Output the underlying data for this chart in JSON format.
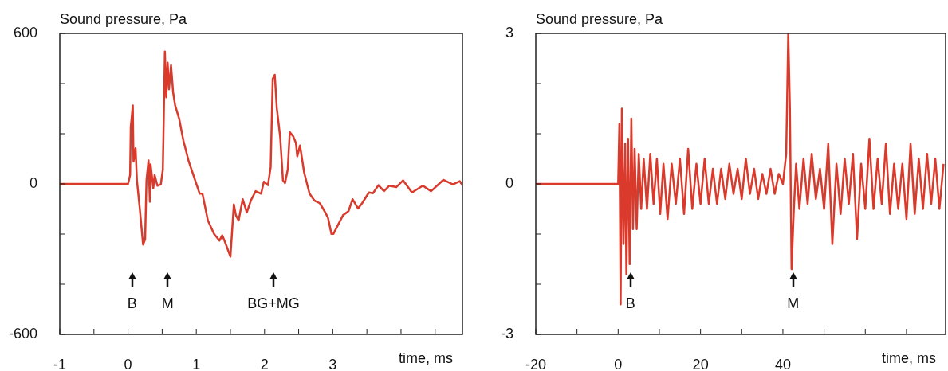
{
  "chart_data": [
    {
      "type": "line",
      "ylabel": "Sound pressure, Pa",
      "xlabel": "time, ms",
      "xlim": [
        -1,
        4.9
      ],
      "xticks": [
        -1,
        {
          "value": -0.5,
          "label": null
        },
        0,
        {
          "value": 0.5,
          "label": null
        },
        1,
        {
          "value": 1.5,
          "label": null
        },
        2,
        {
          "value": 2.5,
          "label": null
        },
        3,
        {
          "value": 3.5,
          "label": null
        },
        {
          "value": 4,
          "label": null
        },
        {
          "value": 4.5,
          "label": null
        }
      ],
      "ylim": [
        -600,
        600
      ],
      "yticks": [
        -600,
        {
          "value": -400,
          "label": null
        },
        {
          "value": -200,
          "label": null
        },
        0,
        {
          "value": 200,
          "label": null
        },
        {
          "value": 400,
          "label": null
        },
        600
      ],
      "legend": false,
      "series": [
        {
          "color": "#d93a2b",
          "x": [
            -1,
            0,
            0.03,
            0.04,
            0.07,
            0.08,
            0.11,
            0.13,
            0.17,
            0.22,
            0.25,
            0.27,
            0.3,
            0.32,
            0.33,
            0.37,
            0.39,
            0.43,
            0.48,
            0.51,
            0.54,
            0.56,
            0.58,
            0.6,
            0.63,
            0.66,
            0.69,
            0.75,
            0.81,
            0.89,
            0.97,
            1.05,
            1.09,
            1.17,
            1.26,
            1.34,
            1.38,
            1.42,
            1.5,
            1.55,
            1.58,
            1.62,
            1.68,
            1.74,
            1.8,
            1.87,
            1.95,
            1.99,
            2.05,
            2.09,
            2.12,
            2.15,
            2.18,
            2.23,
            2.27,
            2.3,
            2.34,
            2.37,
            2.42,
            2.46,
            2.48,
            2.52,
            2.58,
            2.62,
            2.66,
            2.73,
            2.81,
            2.89,
            2.93,
            2.98,
            3.01,
            3.07,
            3.15,
            3.23,
            3.29,
            3.37,
            3.43,
            3.53,
            3.59,
            3.67,
            3.75,
            3.83,
            3.93,
            4.03,
            4.16,
            4.32,
            4.44,
            4.62,
            4.76,
            4.86,
            4.9
          ],
          "values": [
            0,
            0,
            35,
            227,
            313,
            89,
            142,
            14,
            -93,
            -242,
            -221,
            14,
            94,
            -71,
            78,
            -18,
            35,
            -7,
            -2,
            57,
            528,
            345,
            483,
            377,
            473,
            366,
            313,
            259,
            174,
            89,
            25,
            -39,
            -39,
            -146,
            -199,
            -226,
            -205,
            -231,
            -290,
            -82,
            -125,
            -146,
            -61,
            -114,
            -66,
            -29,
            -39,
            9,
            -5,
            67,
            419,
            435,
            302,
            185,
            14,
            3,
            57,
            206,
            190,
            163,
            110,
            153,
            46,
            3,
            -39,
            -66,
            -77,
            -114,
            -135,
            -199,
            -199,
            -167,
            -125,
            -109,
            -61,
            -98,
            -77,
            -34,
            -37,
            -5,
            -29,
            -7,
            -13,
            14,
            -34,
            -7,
            -29,
            16,
            -2,
            11,
            -5
          ]
        }
      ],
      "annotations": [
        {
          "text": "B",
          "x": 0.06
        },
        {
          "text": "M",
          "x": 0.58
        },
        {
          "text": "BG+MG",
          "x": 2.13
        }
      ]
    },
    {
      "type": "line",
      "ylabel": "Sound pressure, Pa",
      "xlabel": "time, ms",
      "xlim": [
        -20,
        79.5
      ],
      "xticks": [
        -20,
        {
          "value": -10,
          "label": null
        },
        0,
        {
          "value": 10,
          "label": null
        },
        20,
        {
          "value": 30,
          "label": null
        },
        40,
        {
          "value": 50,
          "label": null
        },
        {
          "value": 60,
          "label": null
        },
        {
          "value": 70,
          "label": null
        }
      ],
      "ylim": [
        -3,
        3
      ],
      "yticks": [
        -3,
        {
          "value": -2,
          "label": null
        },
        {
          "value": -1,
          "label": null
        },
        0,
        {
          "value": 1,
          "label": null
        },
        {
          "value": 2,
          "label": null
        },
        3
      ],
      "legend": false,
      "series": [
        {
          "color": "#d93a2b",
          "x": [
            -20,
            0,
            0.3,
            0.6,
            0.9,
            1.3,
            1.7,
            2,
            2.4,
            2.8,
            3.2,
            3.6,
            4,
            4.5,
            5,
            5.6,
            6.2,
            7,
            7.8,
            8.6,
            9.4,
            10.2,
            11,
            12,
            13,
            14,
            15,
            16,
            17,
            18,
            19,
            20,
            21,
            22,
            23,
            24,
            25,
            26,
            27,
            28,
            29,
            30,
            31,
            32,
            33,
            34,
            35,
            36,
            37,
            38,
            39,
            40,
            40.8,
            41.3,
            41.7,
            42.1,
            42.6,
            43.2,
            44,
            45,
            46,
            47,
            48,
            49,
            50,
            51,
            52,
            53,
            54,
            55,
            56,
            57,
            58,
            59,
            60,
            61,
            62,
            63,
            64,
            65,
            66,
            67,
            68,
            69,
            70,
            71,
            72,
            73,
            74,
            75,
            76,
            77,
            78,
            79
          ],
          "values": [
            0,
            0,
            1.2,
            -2.4,
            1.5,
            -1.2,
            0.8,
            -1.8,
            0.9,
            -1.6,
            1.3,
            -0.9,
            0.7,
            -0.9,
            0.6,
            -0.5,
            0.5,
            -0.5,
            0.6,
            -0.4,
            0.5,
            -0.6,
            0.4,
            -0.7,
            0.4,
            -0.4,
            0.5,
            -0.6,
            0.7,
            -0.5,
            0.4,
            -0.4,
            0.5,
            -0.4,
            0.3,
            -0.4,
            0.3,
            -0.3,
            0.4,
            -0.2,
            0.3,
            -0.3,
            0.5,
            -0.2,
            0.3,
            -0.3,
            0.2,
            -0.2,
            0.3,
            -0.2,
            0.2,
            0,
            0.6,
            3,
            1.5,
            -1.7,
            -0.6,
            0.4,
            -0.5,
            0.5,
            -0.4,
            0.6,
            -0.3,
            0.3,
            -0.5,
            0.8,
            -1.2,
            0.4,
            -0.6,
            0.5,
            -0.4,
            0.6,
            -1.1,
            0.4,
            -0.5,
            0.9,
            -0.5,
            0.5,
            -0.4,
            0.8,
            -0.6,
            0.4,
            -0.5,
            0.4,
            -0.7,
            0.8,
            -0.6,
            0.5,
            -0.5,
            0.6,
            -0.4,
            0.5,
            -0.5,
            0.4
          ]
        }
      ],
      "annotations": [
        {
          "text": "B",
          "x": 3
        },
        {
          "text": "M",
          "x": 42.5
        }
      ]
    }
  ]
}
